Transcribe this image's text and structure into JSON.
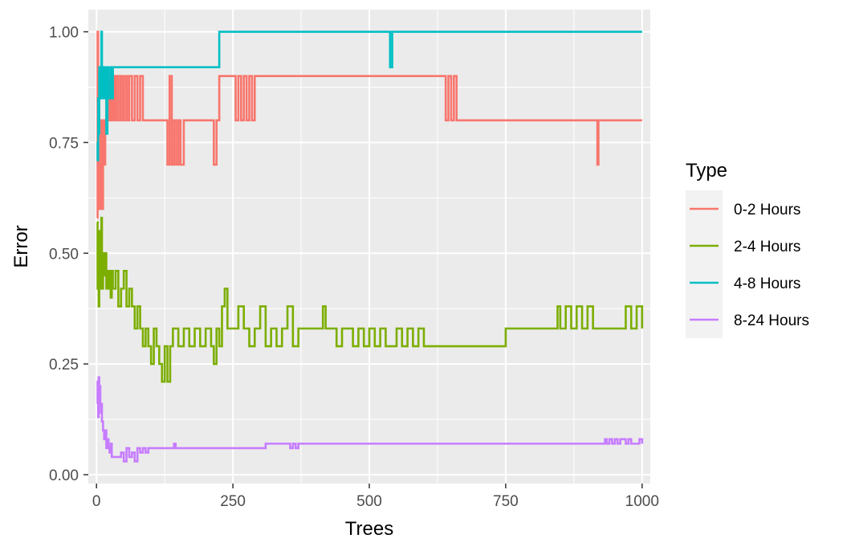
{
  "chart_data": {
    "type": "line",
    "xlabel": "Trees",
    "ylabel": "Error",
    "xlim": [
      -15,
      1015
    ],
    "ylim": [
      -0.02,
      1.05
    ],
    "x_ticks": [
      0,
      250,
      500,
      750,
      1000
    ],
    "x_tick_labels": [
      "0",
      "250",
      "500",
      "750",
      "1000"
    ],
    "y_ticks": [
      0,
      0.25,
      0.5,
      0.75,
      1.0
    ],
    "y_tick_labels": [
      "0.00",
      "0.25",
      "0.50",
      "0.75",
      "1.00"
    ],
    "grid": true,
    "legend": {
      "title": "Type",
      "position": "right"
    },
    "series": [
      {
        "name": "0-2 Hours",
        "color": "#F8766D",
        "x": [
          1,
          2,
          3,
          4,
          5,
          6,
          7,
          8,
          9,
          10,
          12,
          14,
          16,
          18,
          20,
          22,
          24,
          26,
          28,
          30,
          33,
          36,
          40,
          44,
          48,
          52,
          56,
          60,
          65,
          70,
          75,
          80,
          85,
          90,
          100,
          110,
          120,
          130,
          134,
          138,
          142,
          146,
          150,
          154,
          160,
          170,
          180,
          190,
          200,
          210,
          215,
          220,
          225,
          230,
          240,
          250,
          255,
          260,
          265,
          270,
          275,
          280,
          285,
          290,
          300,
          350,
          400,
          450,
          500,
          550,
          600,
          630,
          640,
          645,
          650,
          655,
          660,
          700,
          750,
          800,
          850,
          900,
          915,
          918,
          920,
          925,
          950,
          1000
        ],
        "y": [
          0.58,
          1.0,
          0.6,
          0.9,
          0.7,
          0.6,
          0.7,
          0.6,
          0.8,
          0.6,
          0.8,
          0.7,
          0.8,
          0.9,
          0.8,
          0.9,
          0.8,
          0.9,
          0.8,
          0.9,
          0.8,
          0.9,
          0.8,
          0.9,
          0.8,
          0.9,
          0.8,
          0.9,
          0.8,
          0.9,
          0.8,
          0.9,
          0.8,
          0.8,
          0.8,
          0.8,
          0.8,
          0.7,
          0.9,
          0.7,
          0.8,
          0.7,
          0.8,
          0.7,
          0.8,
          0.8,
          0.8,
          0.8,
          0.8,
          0.8,
          0.7,
          0.8,
          0.9,
          0.9,
          0.9,
          0.9,
          0.8,
          0.9,
          0.8,
          0.9,
          0.8,
          0.9,
          0.8,
          0.9,
          0.9,
          0.9,
          0.9,
          0.9,
          0.9,
          0.9,
          0.9,
          0.9,
          0.8,
          0.9,
          0.8,
          0.9,
          0.8,
          0.8,
          0.8,
          0.8,
          0.8,
          0.8,
          0.8,
          0.7,
          0.8,
          0.8,
          0.8,
          0.8
        ]
      },
      {
        "name": "2-4 Hours",
        "color": "#7CAE00",
        "x": [
          1,
          2,
          3,
          4,
          5,
          6,
          7,
          8,
          9,
          10,
          12,
          14,
          16,
          18,
          20,
          22,
          24,
          26,
          28,
          30,
          35,
          40,
          45,
          50,
          55,
          60,
          65,
          70,
          75,
          80,
          85,
          90,
          95,
          100,
          105,
          110,
          115,
          120,
          125,
          130,
          135,
          140,
          150,
          160,
          170,
          180,
          190,
          200,
          210,
          215,
          220,
          225,
          230,
          235,
          240,
          250,
          260,
          270,
          280,
          290,
          300,
          310,
          320,
          330,
          340,
          350,
          360,
          370,
          380,
          390,
          400,
          410,
          415,
          420,
          430,
          440,
          450,
          460,
          470,
          480,
          490,
          500,
          510,
          520,
          530,
          540,
          550,
          560,
          570,
          580,
          590,
          600,
          610,
          620,
          640,
          660,
          700,
          740,
          750,
          760,
          800,
          840,
          845,
          850,
          860,
          870,
          880,
          890,
          900,
          910,
          920,
          960,
          970,
          980,
          990,
          1000
        ],
        "y": [
          0.57,
          0.42,
          0.5,
          0.38,
          0.55,
          0.42,
          0.5,
          0.45,
          0.58,
          0.42,
          0.5,
          0.45,
          0.5,
          0.42,
          0.46,
          0.42,
          0.46,
          0.4,
          0.46,
          0.42,
          0.46,
          0.38,
          0.42,
          0.46,
          0.38,
          0.42,
          0.38,
          0.33,
          0.38,
          0.33,
          0.29,
          0.33,
          0.29,
          0.25,
          0.33,
          0.29,
          0.25,
          0.21,
          0.29,
          0.21,
          0.29,
          0.33,
          0.29,
          0.33,
          0.29,
          0.33,
          0.29,
          0.33,
          0.29,
          0.25,
          0.33,
          0.29,
          0.38,
          0.42,
          0.33,
          0.33,
          0.38,
          0.33,
          0.29,
          0.33,
          0.38,
          0.29,
          0.33,
          0.29,
          0.33,
          0.38,
          0.29,
          0.33,
          0.33,
          0.33,
          0.33,
          0.33,
          0.38,
          0.33,
          0.33,
          0.29,
          0.33,
          0.33,
          0.29,
          0.33,
          0.29,
          0.33,
          0.29,
          0.33,
          0.29,
          0.29,
          0.33,
          0.29,
          0.33,
          0.29,
          0.33,
          0.29,
          0.29,
          0.29,
          0.29,
          0.29,
          0.29,
          0.29,
          0.33,
          0.33,
          0.33,
          0.33,
          0.38,
          0.33,
          0.38,
          0.33,
          0.38,
          0.33,
          0.38,
          0.33,
          0.33,
          0.33,
          0.38,
          0.33,
          0.38,
          0.33
        ]
      },
      {
        "name": "4-8 Hours",
        "color": "#00BFC4",
        "x": [
          1,
          2,
          3,
          4,
          5,
          6,
          7,
          8,
          9,
          10,
          12,
          14,
          16,
          18,
          20,
          22,
          24,
          26,
          28,
          30,
          35,
          40,
          50,
          60,
          80,
          100,
          150,
          200,
          215,
          220,
          225,
          230,
          300,
          400,
          500,
          535,
          538,
          540,
          542,
          545,
          600,
          700,
          800,
          900,
          1000
        ],
        "y": [
          0.75,
          0.71,
          0.85,
          0.77,
          0.92,
          0.85,
          0.92,
          0.85,
          1.0,
          0.85,
          0.92,
          0.85,
          0.92,
          0.77,
          0.92,
          0.85,
          0.85,
          0.92,
          0.85,
          0.92,
          0.92,
          0.92,
          0.92,
          0.92,
          0.92,
          0.92,
          0.92,
          0.92,
          0.92,
          0.92,
          1.0,
          1.0,
          1.0,
          1.0,
          1.0,
          1.0,
          0.92,
          0.92,
          1.0,
          1.0,
          1.0,
          1.0,
          1.0,
          1.0,
          1.0
        ]
      },
      {
        "name": "8-24 Hours",
        "color": "#C77CFF",
        "x": [
          1,
          2,
          3,
          4,
          5,
          6,
          7,
          8,
          9,
          10,
          12,
          14,
          16,
          18,
          20,
          22,
          24,
          26,
          28,
          30,
          35,
          40,
          45,
          50,
          55,
          60,
          65,
          70,
          75,
          80,
          85,
          90,
          95,
          100,
          110,
          120,
          140,
          142,
          145,
          150,
          200,
          250,
          300,
          310,
          315,
          350,
          355,
          360,
          365,
          370,
          375,
          400,
          500,
          600,
          700,
          800,
          900,
          930,
          932,
          935,
          940,
          945,
          950,
          955,
          960,
          970,
          975,
          980,
          990,
          995,
          1000
        ],
        "y": [
          0.16,
          0.21,
          0.13,
          0.22,
          0.16,
          0.2,
          0.16,
          0.14,
          0.16,
          0.12,
          0.1,
          0.08,
          0.1,
          0.06,
          0.08,
          0.06,
          0.05,
          0.07,
          0.04,
          0.04,
          0.04,
          0.04,
          0.05,
          0.03,
          0.06,
          0.04,
          0.05,
          0.03,
          0.06,
          0.05,
          0.06,
          0.05,
          0.06,
          0.06,
          0.06,
          0.06,
          0.06,
          0.07,
          0.06,
          0.06,
          0.06,
          0.06,
          0.06,
          0.07,
          0.07,
          0.07,
          0.06,
          0.07,
          0.06,
          0.07,
          0.07,
          0.07,
          0.07,
          0.07,
          0.07,
          0.07,
          0.07,
          0.07,
          0.08,
          0.07,
          0.08,
          0.07,
          0.08,
          0.07,
          0.08,
          0.07,
          0.08,
          0.07,
          0.07,
          0.08,
          0.07
        ]
      }
    ]
  }
}
